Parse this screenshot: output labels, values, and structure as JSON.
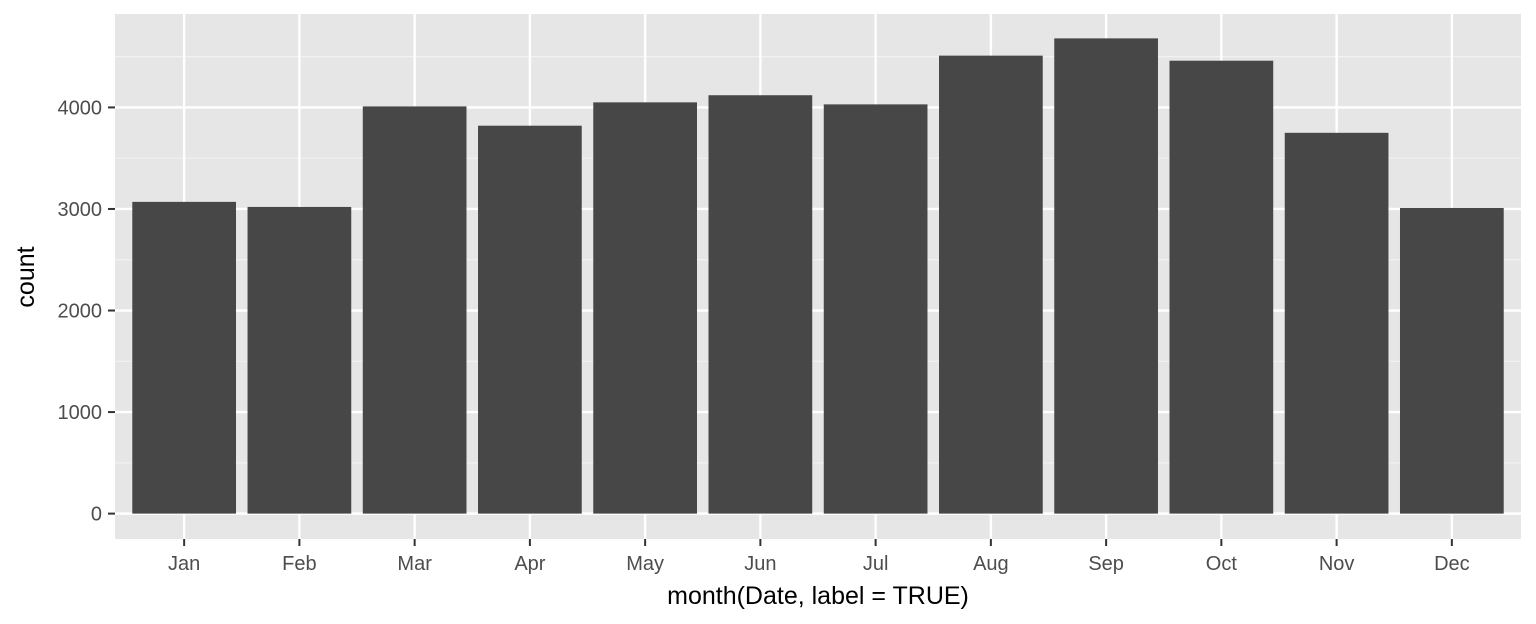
{
  "chart_data": {
    "type": "bar",
    "title": "",
    "xlabel": "month(Date, label = TRUE)",
    "ylabel": "count",
    "categories": [
      "Jan",
      "Feb",
      "Mar",
      "Apr",
      "May",
      "Jun",
      "Jul",
      "Aug",
      "Sep",
      "Oct",
      "Nov",
      "Dec"
    ],
    "values": [
      3070,
      3020,
      4010,
      3820,
      4050,
      4120,
      4030,
      4510,
      4680,
      4460,
      3750,
      3010
    ],
    "ylim": [
      -250,
      4920
    ],
    "yticks": [
      0,
      1000,
      2000,
      3000,
      4000
    ],
    "ytick_labels": [
      "0",
      "1000",
      "2000",
      "3000",
      "4000"
    ],
    "grid": true,
    "legend": "none",
    "colors": {
      "bar": "#474747",
      "panel": "#e6e6e6",
      "grid_major": "#ffffff",
      "grid_minor": "#f2f2f2",
      "tick_text": "#4d4d4d",
      "tick_mark": "#333333"
    }
  }
}
